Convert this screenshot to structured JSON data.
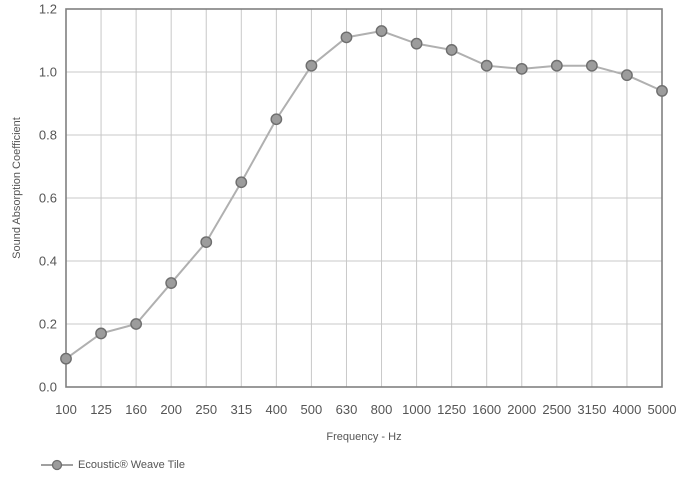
{
  "chart_data": {
    "type": "line",
    "xlabel": "Frequency - Hz",
    "ylabel": "Sound Absorption Coefficient",
    "categories": [
      "100",
      "125",
      "160",
      "200",
      "250",
      "315",
      "400",
      "500",
      "630",
      "800",
      "1000",
      "1250",
      "1600",
      "2000",
      "2500",
      "3150",
      "4000",
      "5000"
    ],
    "ylim": [
      0.0,
      1.2
    ],
    "yticks": [
      "0.0",
      "0.2",
      "0.4",
      "0.6",
      "0.8",
      "1.0",
      "1.2"
    ],
    "grid": true,
    "legend_position": "bottom-left",
    "series": [
      {
        "name": "Ecoustic® Weave Tile",
        "values": [
          0.09,
          0.17,
          0.2,
          0.33,
          0.46,
          0.65,
          0.85,
          1.02,
          1.11,
          1.13,
          1.09,
          1.07,
          1.02,
          1.01,
          1.02,
          1.02,
          0.99,
          0.94
        ],
        "color": "#b0b0b0",
        "marker_fill": "#9c9c9c",
        "marker_stroke": "#6e6e6e"
      }
    ]
  },
  "colors": {
    "grid": "#c8c8c8",
    "frame": "#808080"
  }
}
